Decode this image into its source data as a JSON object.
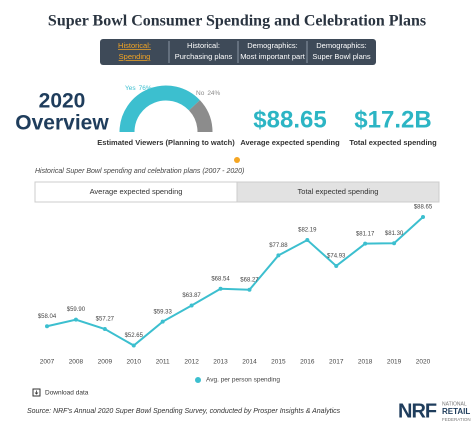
{
  "title": "Super Bowl Consumer Spending and Celebration Plans",
  "tabs": [
    [
      "Historical:",
      "Spending"
    ],
    [
      "Historical:",
      "Purchasing plans"
    ],
    [
      "Demographics:",
      "Most important part"
    ],
    [
      "Demographics:",
      "Super Bowl plans"
    ]
  ],
  "overview": {
    "heading": [
      "2020",
      "Overview"
    ],
    "viewers": {
      "label": "Estimated Viewers (Planning to watch)",
      "series": [
        {
          "name": "Yes",
          "value": 76,
          "value_label": "76%",
          "color": "#3cbfcf"
        },
        {
          "name": "No",
          "value": 24,
          "value_label": "24%",
          "color": "#8c8c8c"
        }
      ]
    },
    "stats": [
      {
        "value": "$88.65",
        "label": "Average expected spending"
      },
      {
        "value": "$17.2B",
        "label": "Total expected spending"
      }
    ]
  },
  "chart_tabs": [
    "Average expected spending",
    "Total expected spending"
  ],
  "chart_data": {
    "type": "line",
    "subtitle": "Historical Super Bowl spending and celebration plans (2007 - 2020)",
    "x": [
      2007,
      2008,
      2009,
      2010,
      2011,
      2012,
      2013,
      2014,
      2015,
      2016,
      2017,
      2018,
      2019,
      2020
    ],
    "xlim": [
      2007,
      2020
    ],
    "series": [
      {
        "name": "Avg. per person spending",
        "color": "#3cbfcf",
        "values": [
          58.04,
          59.9,
          57.27,
          52.65,
          59.33,
          63.87,
          68.54,
          68.27,
          77.88,
          82.19,
          74.93,
          81.17,
          81.3,
          88.65
        ],
        "value_labels": [
          "$58.04",
          "$59.90",
          "$57.27",
          "$52.65",
          "$59.33",
          "$63.87",
          "$68.54",
          "$68.27",
          "$77.88",
          "$82.19",
          "$74.93",
          "$81.17",
          "$81.30",
          "$88.65"
        ]
      }
    ],
    "ylim": [
      50,
      92
    ]
  },
  "download": "Download data",
  "source": "Source: NRF's Annual 2020 Super Bowl Spending Survey, conducted by Prosper Insights & Analytics",
  "logo": {
    "mark": "NRF",
    "lines": [
      "NATIONAL",
      "RETAIL",
      "FEDERATION"
    ]
  }
}
